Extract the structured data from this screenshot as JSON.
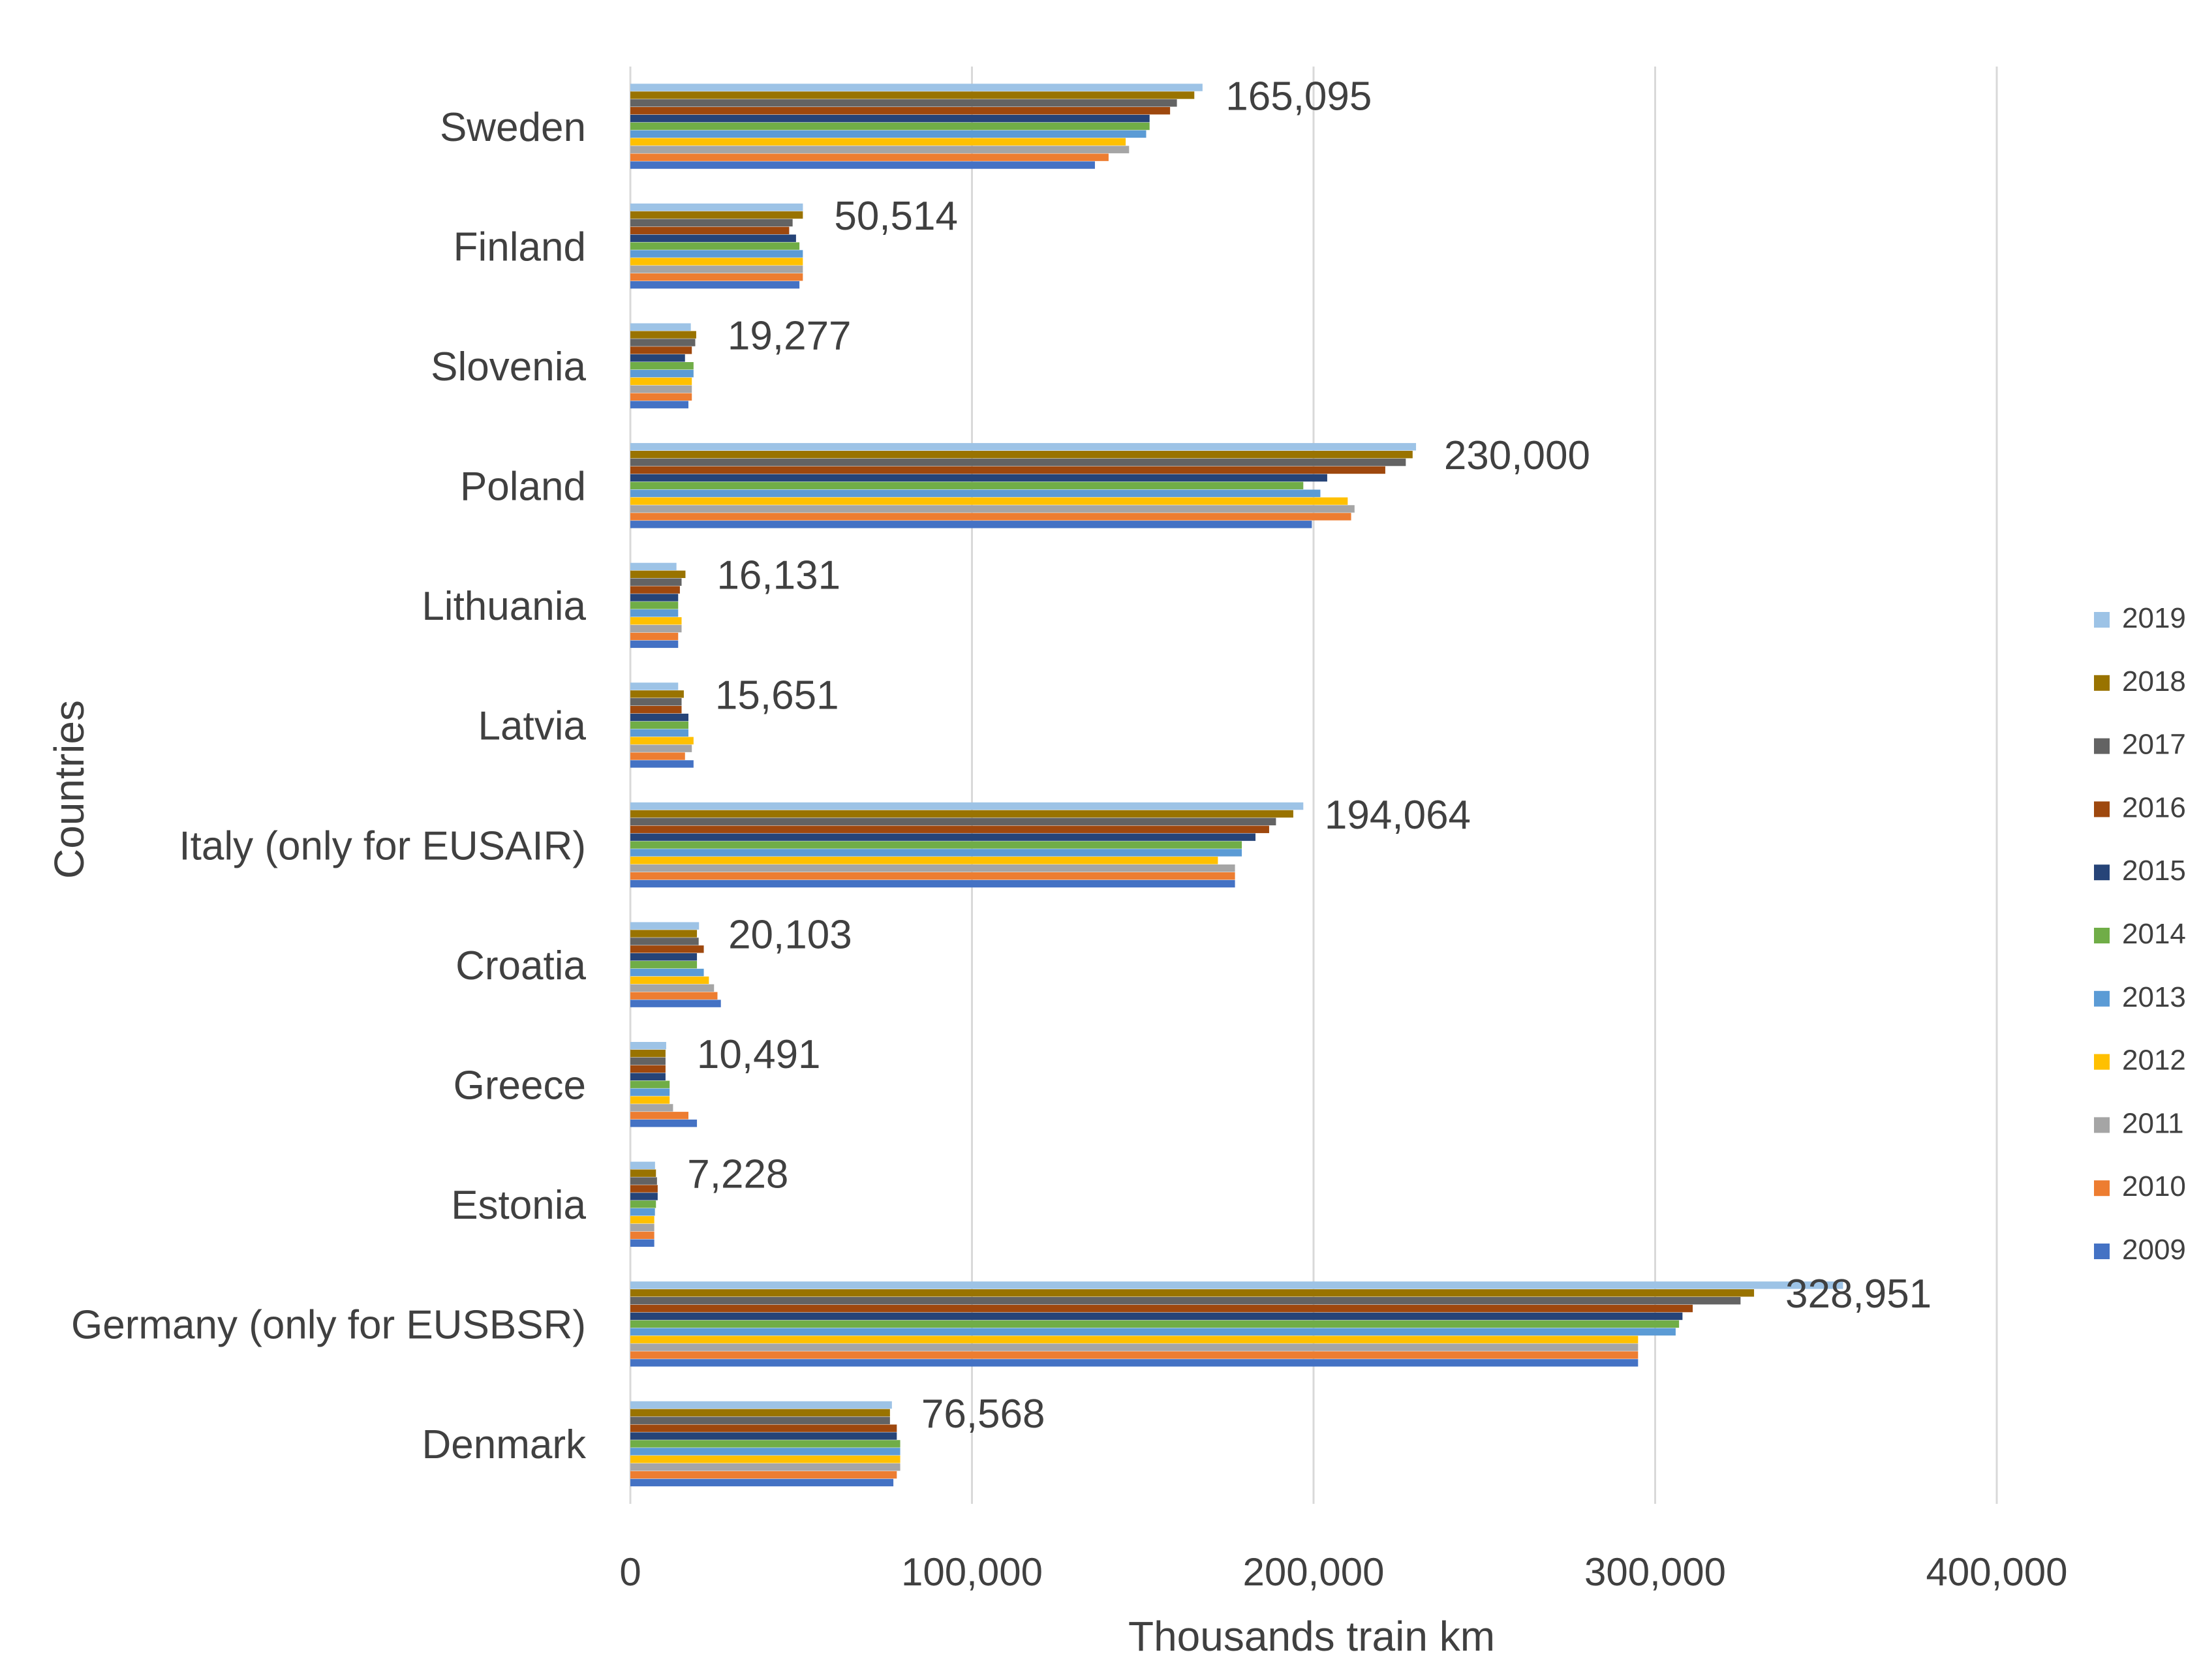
{
  "chart_data": {
    "type": "bar",
    "orientation": "horizontal",
    "title": "",
    "xlabel": "Thousands train km",
    "ylabel": "Countries",
    "xlim": [
      0,
      400000
    ],
    "xticks": [
      "0",
      "100,000",
      "200,000",
      "300,000",
      "400,000"
    ],
    "grid": "vertical major gridlines",
    "legend": "right",
    "categories": [
      "Sweden",
      "Finland",
      "Slovenia",
      "Poland",
      "Lithuania",
      "Latvia",
      "Italy (only for EUSAIR)",
      "Croatia",
      "Greece",
      "Estonia",
      "Germany (only for EUSBSR)",
      "Denmark"
    ],
    "data_labels": [
      "165,095",
      "50,514",
      "19,277",
      "230,000",
      "16,131",
      "15,651",
      "194,064",
      "20,103",
      "10,491",
      "7,228",
      "328,951",
      "76,568"
    ],
    "series": [
      {
        "name": "2019",
        "color": "#9DC3E6",
        "values": [
          167500,
          50514,
          17700,
          230000,
          13500,
          14000,
          197000,
          20103,
          10491,
          7228,
          355000,
          76568
        ]
      },
      {
        "name": "2018",
        "color": "#997300",
        "values": [
          165095,
          50500,
          19277,
          229000,
          16131,
          15651,
          194064,
          19500,
          10300,
          7500,
          328951,
          76000
        ]
      },
      {
        "name": "2017",
        "color": "#636363",
        "values": [
          160000,
          47500,
          19000,
          227000,
          15000,
          15000,
          189000,
          20000,
          10300,
          7800,
          325000,
          76000
        ]
      },
      {
        "name": "2016",
        "color": "#9E480E",
        "values": [
          158000,
          46500,
          18000,
          221000,
          14500,
          15000,
          187000,
          21500,
          10300,
          8000,
          311000,
          78000
        ]
      },
      {
        "name": "2015",
        "color": "#264478",
        "values": [
          152000,
          48500,
          16000,
          204000,
          14000,
          17000,
          183000,
          19500,
          10300,
          8000,
          308000,
          78000
        ]
      },
      {
        "name": "2014",
        "color": "#70AD47",
        "values": [
          152000,
          49500,
          18500,
          197000,
          14000,
          17000,
          179000,
          19500,
          11500,
          7500,
          307000,
          79000
        ]
      },
      {
        "name": "2013",
        "color": "#5B9BD5",
        "values": [
          151000,
          50500,
          18500,
          202000,
          14000,
          17000,
          179000,
          21500,
          11500,
          7200,
          306000,
          79000
        ]
      },
      {
        "name": "2012",
        "color": "#FFC000",
        "values": [
          145000,
          50500,
          18000,
          210000,
          15000,
          18500,
          172000,
          23000,
          11500,
          7000,
          295000,
          79000
        ]
      },
      {
        "name": "2011",
        "color": "#A5A5A5",
        "values": [
          146000,
          50500,
          18000,
          212000,
          15000,
          18000,
          177000,
          24500,
          12500,
          7000,
          295000,
          79000
        ]
      },
      {
        "name": "2010",
        "color": "#ED7D31",
        "values": [
          140000,
          50500,
          18000,
          211000,
          14000,
          16000,
          177000,
          25500,
          17000,
          7000,
          295000,
          78000
        ]
      },
      {
        "name": "2009",
        "color": "#4472C4",
        "values": [
          136000,
          49500,
          17000,
          199500,
          14000,
          18500,
          177000,
          26500,
          19500,
          7000,
          295000,
          77000
        ]
      }
    ]
  }
}
